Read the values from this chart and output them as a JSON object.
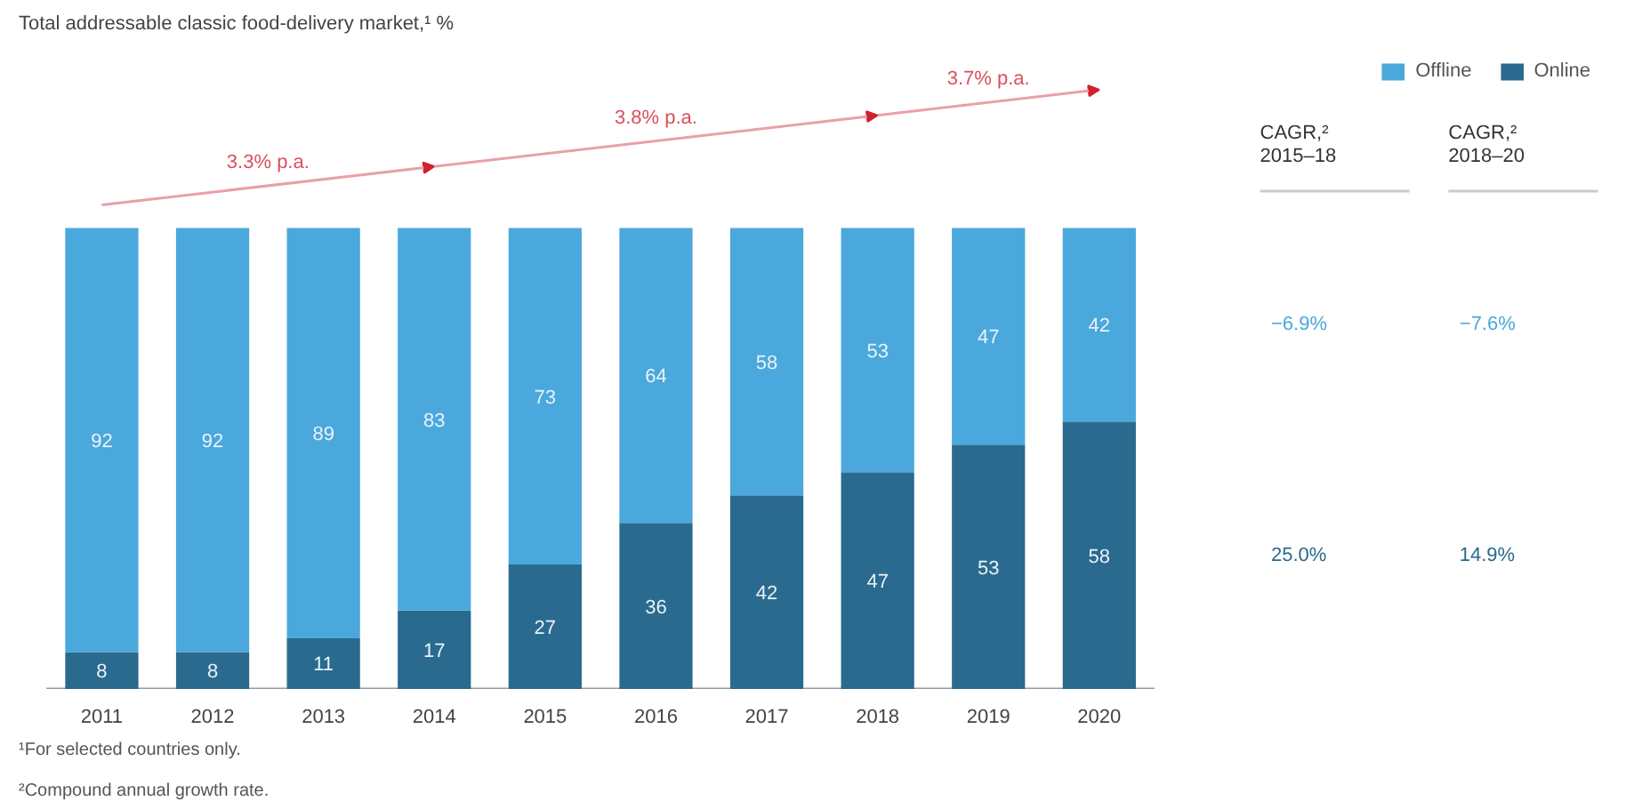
{
  "chart_data": {
    "type": "bar",
    "stacked": true,
    "data_labels": true,
    "title": "Total addressable classic food-delivery market,¹ %",
    "categories": [
      "2011",
      "2012",
      "2013",
      "2014",
      "2015",
      "2016",
      "2017",
      "2018",
      "2019",
      "2020"
    ],
    "series": [
      {
        "name": "Online",
        "color": "#2a6a8e",
        "values": [
          8,
          8,
          11,
          17,
          27,
          36,
          42,
          47,
          53,
          58
        ]
      },
      {
        "name": "Offline",
        "color": "#4aa8dc",
        "values": [
          92,
          92,
          89,
          83,
          73,
          64,
          58,
          53,
          47,
          42
        ]
      }
    ],
    "legend": "top right",
    "annotations": [
      "3.3% p.a.",
      "3.8% p.a.",
      "3.7% p.a.",
      "CAGR,²\n2015–18",
      "CAGR,²\n2018–20",
      "−6.9%",
      "−7.6%",
      "25.0%",
      "14.9%",
      "¹For selected countries only.",
      "²Compound annual growth rate."
    ]
  }
}
